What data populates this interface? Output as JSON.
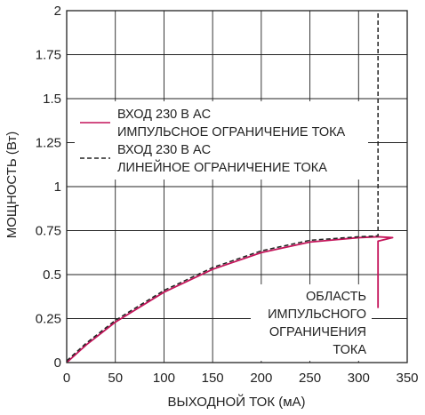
{
  "chart_data": {
    "type": "line",
    "title": "",
    "xlabel": "ВЫХОДНОЙ ТОК (мА)",
    "ylabel": "МОЩНОСТЬ (Вт)",
    "xlim": [
      0,
      350
    ],
    "ylim": [
      0,
      2
    ],
    "x_ticks": [
      "0",
      "50",
      "100",
      "150",
      "200",
      "250",
      "300",
      "350"
    ],
    "y_ticks": [
      "0",
      "0.25",
      "0.5",
      "0.75",
      "1",
      "1.25",
      "1.5",
      "1.75",
      "2"
    ],
    "grid": true,
    "legend_position": "center-left",
    "series": [
      {
        "name": "ВХОД 230 В AC ИМПУЛЬСНОЕ ОГРАНИЧЕНИЕ ТОКА",
        "legend_lines": [
          "ВХОД 230 В AC",
          "ИМПУЛЬСНОЕ ОГРАНИЧЕНИЕ ТОКА"
        ],
        "style": "solid",
        "color": "#c4145a",
        "x": [
          0,
          20,
          50,
          100,
          150,
          200,
          250,
          300,
          320,
          335,
          320,
          320
        ],
        "y": [
          0,
          0.1,
          0.23,
          0.4,
          0.53,
          0.625,
          0.685,
          0.71,
          0.715,
          0.71,
          0.69,
          0.31
        ]
      },
      {
        "name": "ВХОД 230 В AC ЛИНЕЙНОЕ ОГРАНИЧЕНИЕ ТОКА",
        "legend_lines": [
          "ВХОД 230 В AC",
          "ЛИНЕЙНОЕ ОГРАНИЧЕНИЕ ТОКА"
        ],
        "style": "dashed",
        "color": "#222222",
        "x": [
          0,
          20,
          50,
          100,
          150,
          200,
          250,
          300,
          320,
          320
        ],
        "y": [
          0.01,
          0.11,
          0.24,
          0.41,
          0.54,
          0.635,
          0.695,
          0.715,
          0.72,
          2
        ]
      }
    ],
    "annotation": {
      "lines": [
        "ОБЛАСТЬ",
        "ИМПУЛЬСНОГО",
        "ОГРАНИЧЕНИЯ",
        "ТОКА"
      ]
    }
  }
}
